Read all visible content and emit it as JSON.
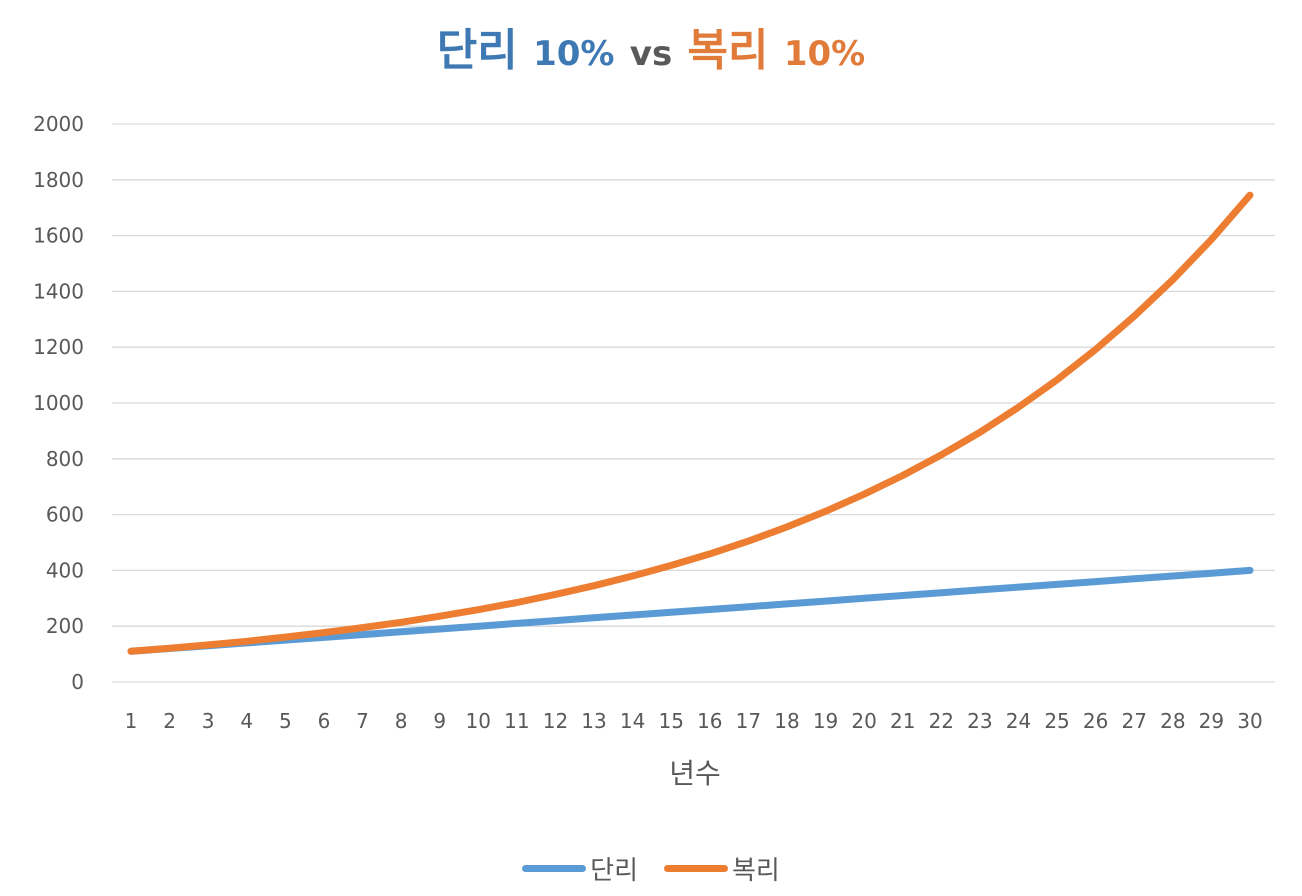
{
  "title": {
    "part1": "단리",
    "part2": "10%",
    "part3": "vs",
    "part4": "복리",
    "part5": "10%"
  },
  "colors": {
    "simple": "#5b9bd5",
    "compound": "#ed7d31",
    "title_blue": "#3e79b4",
    "title_orange": "#e07b39",
    "grid": "#d9d9d9",
    "text": "#595959"
  },
  "legend": {
    "simple": "단리",
    "compound": "복리"
  },
  "chart_data": {
    "type": "line",
    "title": "단리 10% vs 복리 10%",
    "xlabel": "년수",
    "ylabel": "",
    "ylim": [
      0,
      2000
    ],
    "yticks": [
      0,
      200,
      400,
      600,
      800,
      1000,
      1200,
      1400,
      1600,
      1800,
      2000
    ],
    "grid": true,
    "legend_position": "bottom",
    "categories": [
      1,
      2,
      3,
      4,
      5,
      6,
      7,
      8,
      9,
      10,
      11,
      12,
      13,
      14,
      15,
      16,
      17,
      18,
      19,
      20,
      21,
      22,
      23,
      24,
      25,
      26,
      27,
      28,
      29,
      30
    ],
    "series": [
      {
        "name": "단리",
        "values": [
          110,
          120,
          130,
          140,
          150,
          160,
          170,
          180,
          190,
          200,
          210,
          220,
          230,
          240,
          250,
          260,
          270,
          280,
          290,
          300,
          310,
          320,
          330,
          340,
          350,
          360,
          370,
          380,
          390,
          400
        ]
      },
      {
        "name": "복리",
        "values": [
          110,
          121,
          133,
          146,
          161,
          177,
          195,
          214,
          236,
          259,
          285,
          314,
          345,
          380,
          418,
          459,
          505,
          556,
          612,
          673,
          740,
          814,
          895,
          985,
          1083,
          1192,
          1311,
          1442,
          1586,
          1745
        ]
      }
    ]
  }
}
